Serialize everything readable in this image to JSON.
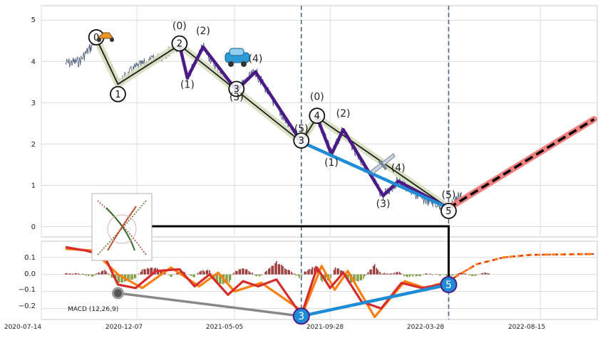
{
  "chart_data": [
    {
      "type": "line",
      "panel": "price",
      "x_axis": {
        "type": "date",
        "range": [
          "2020-07-14",
          "2022-11-10"
        ],
        "ticks": [
          "2020-07-14",
          "2020-12-07",
          "2021-05-05",
          "2021-09-28",
          "2022-03-28",
          "2022-08-15"
        ]
      },
      "y_axis": {
        "range": [
          -0.25,
          5.35
        ],
        "ticks": [
          0,
          1,
          2,
          3,
          4,
          5
        ]
      },
      "grid": true,
      "series": [
        {
          "kind": "price",
          "color": "#4a5a78",
          "anchors": [
            {
              "x": "2020-08-20",
              "y": 3.95
            },
            {
              "x": "2020-09-10",
              "y": 4.0
            },
            {
              "x": "2020-09-28",
              "y": 4.35
            },
            {
              "x": "2020-10-06",
              "y": 4.55
            },
            {
              "x": "2020-10-24",
              "y": 4.0
            },
            {
              "x": "2020-11-08",
              "y": 3.45
            },
            {
              "x": "2020-12-05",
              "y": 3.85
            },
            {
              "x": "2021-01-10",
              "y": 4.1
            },
            {
              "x": "2021-02-10",
              "y": 4.4
            },
            {
              "x": "2021-02-22",
              "y": 3.6
            },
            {
              "x": "2021-03-18",
              "y": 4.35
            },
            {
              "x": "2021-04-20",
              "y": 3.55
            },
            {
              "x": "2021-05-08",
              "y": 3.3
            },
            {
              "x": "2021-06-06",
              "y": 3.75
            },
            {
              "x": "2021-07-18",
              "y": 2.65
            },
            {
              "x": "2021-08-15",
              "y": 2.05
            },
            {
              "x": "2021-09-08",
              "y": 2.65
            },
            {
              "x": "2021-09-30",
              "y": 1.75
            },
            {
              "x": "2021-10-18",
              "y": 2.35
            },
            {
              "x": "2021-11-25",
              "y": 1.3
            },
            {
              "x": "2021-12-18",
              "y": 0.75
            },
            {
              "x": "2022-01-10",
              "y": 1.1
            },
            {
              "x": "2022-02-12",
              "y": 0.7
            },
            {
              "x": "2022-03-28",
              "y": 0.45
            },
            {
              "x": "2022-04-18",
              "y": 0.85
            }
          ]
        },
        {
          "kind": "wave",
          "degree": "primary",
          "points": [
            {
              "x": "2020-10-06",
              "y": 4.55,
              "label": "0"
            },
            {
              "x": "2020-11-08",
              "y": 3.45,
              "label": "1"
            },
            {
              "x": "2021-02-10",
              "y": 4.4,
              "label": "2"
            },
            {
              "x": "2021-05-08",
              "y": 3.3,
              "label": "3"
            },
            {
              "x": "2021-08-15",
              "y": 2.05,
              "label": "3"
            },
            {
              "x": "2021-09-08",
              "y": 2.65,
              "label": "4"
            },
            {
              "x": "2022-03-28",
              "y": 0.45,
              "label": "5"
            }
          ]
        },
        {
          "kind": "wave",
          "degree": "minor",
          "points": [
            {
              "x": "2021-02-10",
              "y": 4.4,
              "label": "(0)"
            },
            {
              "x": "2021-02-22",
              "y": 3.6,
              "label": "(1)"
            },
            {
              "x": "2021-03-18",
              "y": 4.35,
              "label": "(2)"
            },
            {
              "x": "2021-05-08",
              "y": 3.3,
              "label": "(3)"
            },
            {
              "x": "2021-06-06",
              "y": 3.75,
              "label": "(4)"
            },
            {
              "x": "2021-08-15",
              "y": 2.05,
              "label": "(5)"
            },
            {
              "x": "2021-09-08",
              "y": 2.65,
              "label": "(0)"
            },
            {
              "x": "2021-09-30",
              "y": 1.75,
              "label": "(1)"
            },
            {
              "x": "2021-10-18",
              "y": 2.35,
              "label": "(2)"
            },
            {
              "x": "2021-12-18",
              "y": 0.75,
              "label": "(3)"
            },
            {
              "x": "2022-01-10",
              "y": 1.1,
              "label": "(4)"
            },
            {
              "x": "2022-03-28",
              "y": 0.45,
              "label": "(5)"
            }
          ]
        },
        {
          "kind": "trend",
          "color": "#1f8dd6",
          "points": [
            {
              "x": "2021-08-15",
              "y": 2.05
            },
            {
              "x": "2022-03-28",
              "y": 0.45
            }
          ]
        },
        {
          "kind": "projection",
          "color": "#f08080",
          "points": [
            {
              "x": "2022-03-28",
              "y": 0.45
            },
            {
              "x": "2022-11-05",
              "y": 2.6
            }
          ]
        }
      ],
      "verticals": [
        "2021-08-15",
        "2022-03-28"
      ],
      "icons": [
        "scooter-icon",
        "car-icon",
        "airplane-icon"
      ]
    },
    {
      "type": "line",
      "panel": "macd",
      "label": "MACD (12,26,9)",
      "x_axis": {
        "type": "date",
        "range": [
          "2020-07-14",
          "2022-11-10"
        ]
      },
      "y_axis": {
        "range": [
          -0.265,
          0.195
        ],
        "ticks": [
          0.1,
          0.0,
          -0.1,
          -0.2
        ]
      },
      "grid": true,
      "series": [
        {
          "name": "macd",
          "color": "#d62c2c",
          "anchors": [
            {
              "x": "2020-08-20",
              "y": 0.16
            },
            {
              "x": "2020-09-20",
              "y": 0.14
            },
            {
              "x": "2020-10-18",
              "y": 0.11
            },
            {
              "x": "2020-11-08",
              "y": -0.06
            },
            {
              "x": "2020-12-05",
              "y": -0.08
            },
            {
              "x": "2021-01-05",
              "y": 0.02
            },
            {
              "x": "2021-02-10",
              "y": 0.03
            },
            {
              "x": "2021-03-05",
              "y": -0.07
            },
            {
              "x": "2021-03-28",
              "y": 0.0
            },
            {
              "x": "2021-04-25",
              "y": -0.12
            },
            {
              "x": "2021-05-18",
              "y": -0.04
            },
            {
              "x": "2021-06-10",
              "y": -0.07
            },
            {
              "x": "2021-07-08",
              "y": -0.03
            },
            {
              "x": "2021-08-15",
              "y": -0.24
            },
            {
              "x": "2021-09-08",
              "y": 0.04
            },
            {
              "x": "2021-09-28",
              "y": -0.08
            },
            {
              "x": "2021-10-18",
              "y": 0.01
            },
            {
              "x": "2021-11-15",
              "y": -0.16
            },
            {
              "x": "2021-12-15",
              "y": -0.2
            },
            {
              "x": "2022-01-15",
              "y": -0.05
            },
            {
              "x": "2022-02-15",
              "y": -0.08
            },
            {
              "x": "2022-03-28",
              "y": -0.05
            }
          ]
        },
        {
          "name": "signal",
          "color": "#ff7f0e",
          "anchors": [
            {
              "x": "2020-08-20",
              "y": 0.15
            },
            {
              "x": "2020-10-01",
              "y": 0.14
            },
            {
              "x": "2020-11-08",
              "y": 0.0
            },
            {
              "x": "2020-12-15",
              "y": -0.08
            },
            {
              "x": "2021-01-28",
              "y": 0.04
            },
            {
              "x": "2021-03-12",
              "y": -0.07
            },
            {
              "x": "2021-04-10",
              "y": 0.01
            },
            {
              "x": "2021-05-05",
              "y": -0.1
            },
            {
              "x": "2021-06-15",
              "y": -0.05
            },
            {
              "x": "2021-08-18",
              "y": -0.22
            },
            {
              "x": "2021-09-15",
              "y": 0.05
            },
            {
              "x": "2021-10-05",
              "y": -0.09
            },
            {
              "x": "2021-10-25",
              "y": 0.02
            },
            {
              "x": "2021-12-05",
              "y": -0.25
            },
            {
              "x": "2022-01-20",
              "y": -0.04
            },
            {
              "x": "2022-02-20",
              "y": -0.08
            },
            {
              "x": "2022-03-28",
              "y": -0.04
            }
          ]
        },
        {
          "name": "macd-projection",
          "color": "#d62c2c",
          "points": [
            {
              "x": "2022-04-05",
              "y": -0.02
            },
            {
              "x": "2022-05-10",
              "y": 0.06
            },
            {
              "x": "2022-06-20",
              "y": 0.1
            },
            {
              "x": "2022-08-01",
              "y": 0.115
            },
            {
              "x": "2022-11-05",
              "y": 0.12
            }
          ]
        }
      ],
      "histogram": {
        "up_color": "#8b1a1a",
        "down_color": "#6b8e23"
      },
      "markers": [
        {
          "x": "2020-11-08",
          "y": -0.11,
          "label": ""
        },
        {
          "x": "2021-08-15",
          "y": -0.245,
          "label": "3"
        },
        {
          "x": "2022-03-28",
          "y": -0.06,
          "label": "5"
        }
      ]
    }
  ],
  "chart": {
    "macd_label": "MACD (12,26,9)",
    "primary_labels": [
      "0",
      "1",
      "2",
      "3",
      "3",
      "4",
      "5"
    ],
    "minor_labels": [
      "(0)",
      "(1)",
      "(2)",
      "(3)",
      "(4)",
      "(5)",
      "(0)",
      "(1)",
      "(2)",
      "(3)",
      "(4)",
      "(5)"
    ],
    "macd_marker_labels": [
      "3",
      "5"
    ],
    "price_ticks": [
      "0",
      "1",
      "2",
      "3",
      "4",
      "5"
    ],
    "macd_ticks": [
      "0.1",
      "0.0",
      "−0.1",
      "−0.2"
    ],
    "x_ticks": [
      "2020-07-14",
      "2020-12-07",
      "2021-05-05",
      "2021-09-28",
      "2022-03-28",
      "2022-08-15"
    ]
  }
}
